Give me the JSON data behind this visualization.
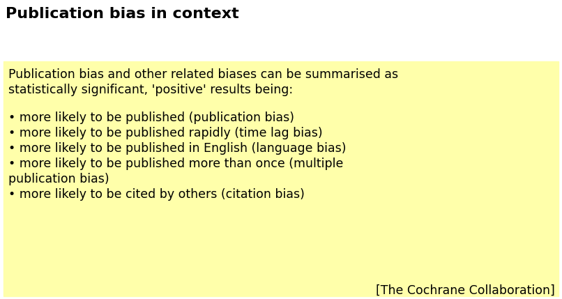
{
  "title": "Publication bias in context",
  "title_fontsize": 16,
  "title_fontweight": "bold",
  "background_color": "#ffffff",
  "box_color": "#ffffaa",
  "intro_text_line1": "Publication bias and other related biases can be summarised as",
  "intro_text_line2": "statistically significant, 'positive' results being:",
  "bullet_points": [
    "• more likely to be published (publication bias)",
    "• more likely to be published rapidly (time lag bias)",
    "• more likely to be published in English (language bias)",
    "• more likely to be published more than once (multiple",
    "publication bias)",
    "• more likely to be cited by others (citation bias)"
  ],
  "citation_text": "[The Cochrane Collaboration]",
  "text_fontsize": 12.5,
  "text_color": "#000000",
  "title_color": "#000000"
}
